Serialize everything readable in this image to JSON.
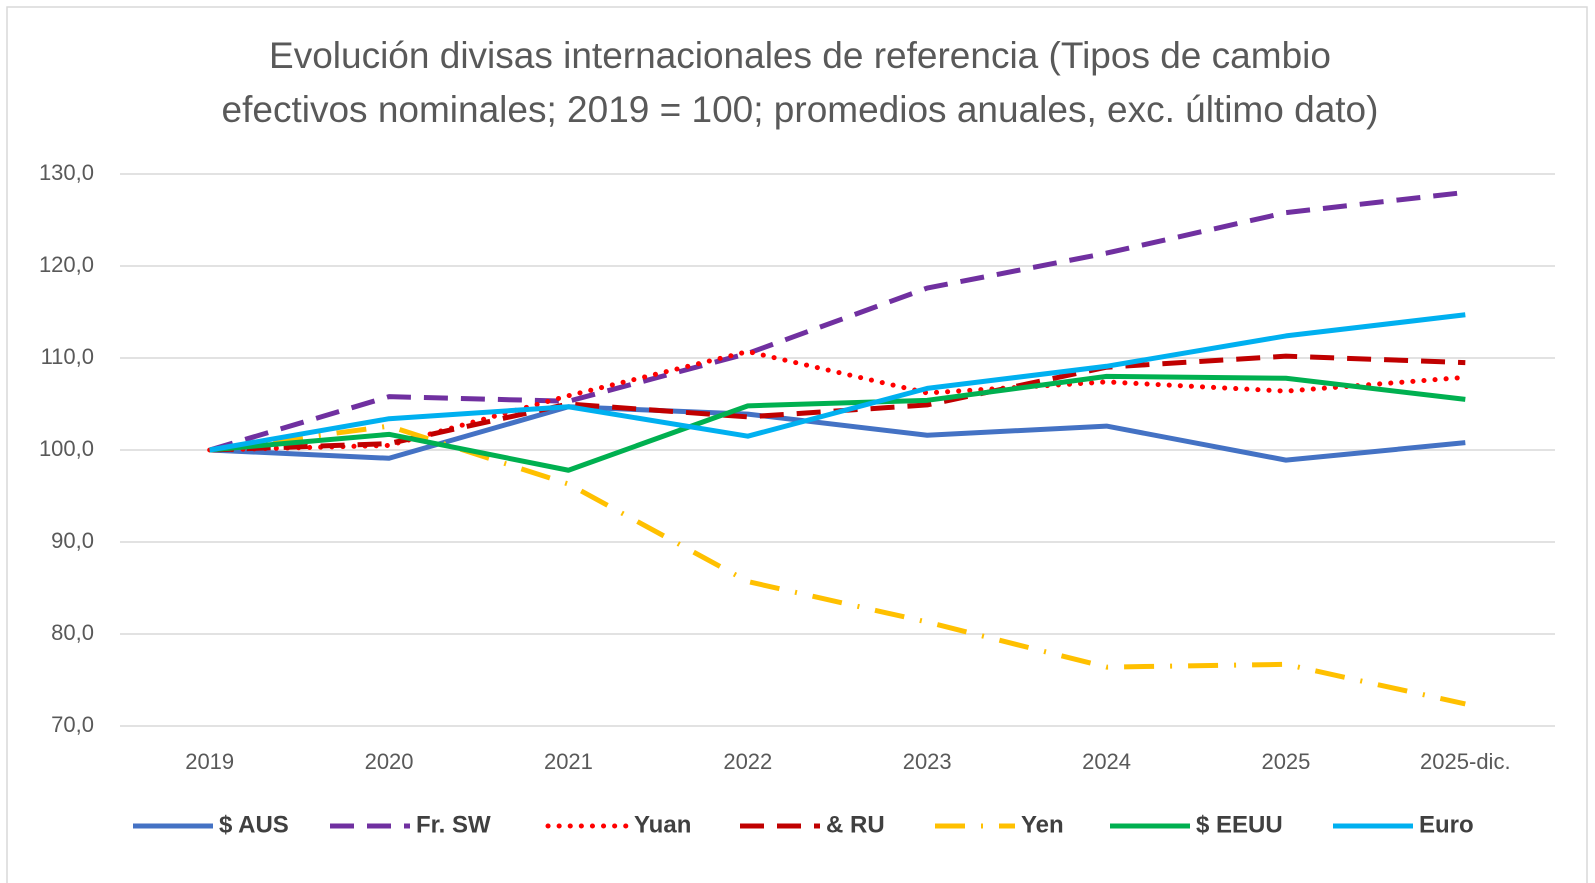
{
  "chart_data": {
    "type": "line",
    "title": [
      "Evolución divisas internacionales de referencia (Tipos de cambio",
      "efectivos nominales; 2019 = 100; promedios anuales, exc. último dato)"
    ],
    "categories": [
      "2019",
      "2020",
      "2021",
      "2022",
      "2023",
      "2024",
      "2025",
      "2025-dic."
    ],
    "ylim": [
      70,
      130
    ],
    "yticks": [
      {
        "value": 70,
        "label": "70,0"
      },
      {
        "value": 80,
        "label": "80,0"
      },
      {
        "value": 90,
        "label": "90,0"
      },
      {
        "value": 100,
        "label": "100,0"
      },
      {
        "value": 110,
        "label": "110,0"
      },
      {
        "value": 120,
        "label": "120,0"
      },
      {
        "value": 130,
        "label": "130,0"
      }
    ],
    "grid": true,
    "legend": "bottom",
    "series": [
      {
        "name": "$ AUS",
        "color": "#4472c4",
        "dash": "solid",
        "values": [
          100,
          99.1,
          104.7,
          103.9,
          101.6,
          102.6,
          98.9,
          100.8
        ]
      },
      {
        "name": "Fr. SW",
        "color": "#7030a0",
        "dash": "dash",
        "values": [
          100,
          105.8,
          105.3,
          110.5,
          117.6,
          121.4,
          125.8,
          128.0
        ]
      },
      {
        "name": "Yuan",
        "color": "#ff0000",
        "dash": "dot",
        "values": [
          100,
          100.5,
          105.9,
          110.7,
          106.2,
          107.4,
          106.4,
          107.9
        ]
      },
      {
        "name": "& RU",
        "color": "#c00000",
        "dash": "dash",
        "values": [
          100,
          100.7,
          105.0,
          103.6,
          104.9,
          109.0,
          110.2,
          109.5
        ]
      },
      {
        "name": "Yen",
        "color": "#ffc000",
        "dash": "dashdot",
        "values": [
          100,
          102.6,
          96.3,
          85.7,
          81.3,
          76.4,
          76.7,
          72.4
        ]
      },
      {
        "name": "$ EEUU",
        "color": "#00b050",
        "dash": "solid",
        "values": [
          100,
          101.7,
          97.8,
          104.8,
          105.4,
          108.0,
          107.8,
          105.5
        ]
      },
      {
        "name": "Euro",
        "color": "#00b0f0",
        "dash": "solid",
        "values": [
          100,
          103.4,
          104.7,
          101.5,
          106.7,
          109.1,
          112.4,
          114.7
        ]
      }
    ]
  }
}
